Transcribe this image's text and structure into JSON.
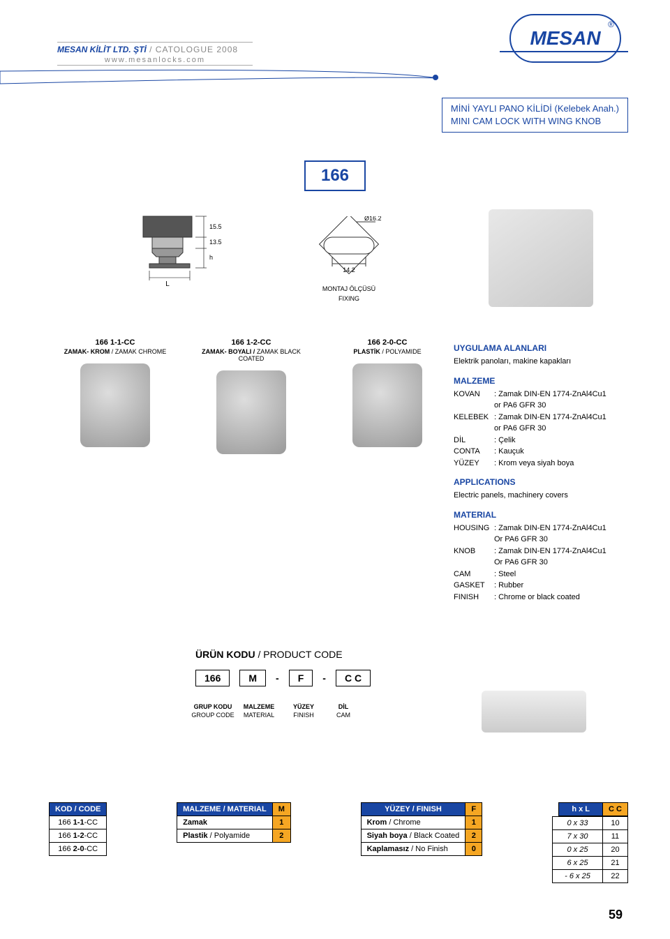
{
  "header": {
    "company_it": "MESAN KİLİT LTD. ŞTİ",
    "catalogue": " / CATOLOGUE 2008",
    "url": "www.mesanlocks.com",
    "brand": "MESAN"
  },
  "product": {
    "title_tr": "MİNİ YAYLI PANO KİLİDİ (Kelebek Anah.)",
    "title_en": "MINI CAM LOCK WITH WING KNOB",
    "number": "166"
  },
  "drawing": {
    "dim_top": "15.5",
    "dim_mid": "13.5",
    "dim_h": "h",
    "dim_L": "L",
    "dim_dia": "Ø16.2",
    "dim_fix": "14.2",
    "fix_tr": "MONTAJ ÖLÇÜSÜ",
    "fix_en": "FIXING"
  },
  "variants": [
    {
      "code_pre": "166",
      "code_b": "1-1",
      "code_suf": "-CC",
      "desc_b": "ZAMAK- KROM",
      "desc_r": " / ZAMAK CHROME"
    },
    {
      "code_pre": "166",
      "code_b": "1-2",
      "code_suf": "-CC",
      "desc_b": "ZAMAK- BOYALI /",
      "desc_r": " ZAMAK BLACK COATED"
    },
    {
      "code_pre": "166",
      "code_b": "2-0",
      "code_suf": "-CC",
      "desc_b": "PLASTİK",
      "desc_r": " / POLYAMIDE"
    }
  ],
  "info": {
    "apps_tr_h": "UYGULAMA ALANLARI",
    "apps_tr": "Elektrik panoları, makine kapakları",
    "mat_tr_h": "MALZEME",
    "mat_tr": [
      {
        "k": "KOVAN",
        "v": ": Zamak DIN-EN 1774-ZnAl4Cu1"
      },
      {
        "k": "",
        "v": "  or PA6 GFR 30"
      },
      {
        "k": "KELEBEK",
        "v": ": Zamak DIN-EN 1774-ZnAl4Cu1"
      },
      {
        "k": "",
        "v": "  or PA6 GFR 30"
      },
      {
        "k": "DİL",
        "v": ": Çelik"
      },
      {
        "k": "CONTA",
        "v": ": Kauçuk"
      },
      {
        "k": "YÜZEY",
        "v": ": Krom veya siyah boya"
      }
    ],
    "apps_en_h": "APPLICATIONS",
    "apps_en": "Electric panels, machinery covers",
    "mat_en_h": "MATERIAL",
    "mat_en": [
      {
        "k": "HOUSING",
        "v": ": Zamak DIN-EN 1774-ZnAl4Cu1"
      },
      {
        "k": "",
        "v": "  Or PA6 GFR 30"
      },
      {
        "k": "KNOB",
        "v": ": Zamak DIN-EN 1774-ZnAl4Cu1"
      },
      {
        "k": "",
        "v": "  Or PA6 GFR 30"
      },
      {
        "k": "CAM",
        "v": ": Steel"
      },
      {
        "k": "GASKET",
        "v": ": Rubber"
      },
      {
        "k": "FINISH",
        "v": ": Chrome or black coated"
      }
    ]
  },
  "prodcode": {
    "title_b": "ÜRÜN KODU",
    "title_r": " / PRODUCT CODE",
    "seq": [
      "166",
      "M",
      "-",
      "F",
      "-",
      "C C"
    ],
    "labels": [
      {
        "l1": "GRUP KODU",
        "l2": "GROUP CODE"
      },
      {
        "l1": "MALZEME",
        "l2": "MATERIAL"
      },
      {
        "l1": "YÜZEY",
        "l2": "FINISH"
      },
      {
        "l1": "DİL",
        "l2": "CAM"
      }
    ]
  },
  "tbl_kod": {
    "header": "KOD / CODE",
    "rows": [
      {
        "p": "166  ",
        "b": "1-1",
        "s": "-CC"
      },
      {
        "p": "166  ",
        "b": "1-2",
        "s": "-CC"
      },
      {
        "p": "166  ",
        "b": "2-0",
        "s": "-CC"
      }
    ]
  },
  "tbl_mat": {
    "header": "MALZEME / MATERIAL",
    "hc": "M",
    "rows": [
      {
        "name": "Zamak",
        "code": "1",
        "span": 2
      },
      {
        "name": "Plastik / Polyamide",
        "code": "2",
        "span": 1
      }
    ]
  },
  "tbl_fin": {
    "header": "YÜZEY / FINISH",
    "hc": "F",
    "rows": [
      {
        "b": "Krom",
        "r": " / Chrome",
        "code": "1"
      },
      {
        "b": "Siyah boya",
        "r": " / Black Coated",
        "code": "2"
      },
      {
        "b": "Kaplamasız",
        "r": " / No Finish",
        "code": "0"
      }
    ]
  },
  "tbl_hxl": {
    "h1": "h x L",
    "h2": "C C",
    "rows": [
      [
        "0 x 33",
        "10"
      ],
      [
        "7 x 30",
        "11"
      ],
      [
        "0 x 25",
        "20"
      ],
      [
        "6 x 25",
        "21"
      ],
      [
        "- 6 x 25",
        "22"
      ]
    ]
  },
  "colors": {
    "brand": "#1946a3",
    "code_bg": "#f5a623"
  },
  "page": "59"
}
